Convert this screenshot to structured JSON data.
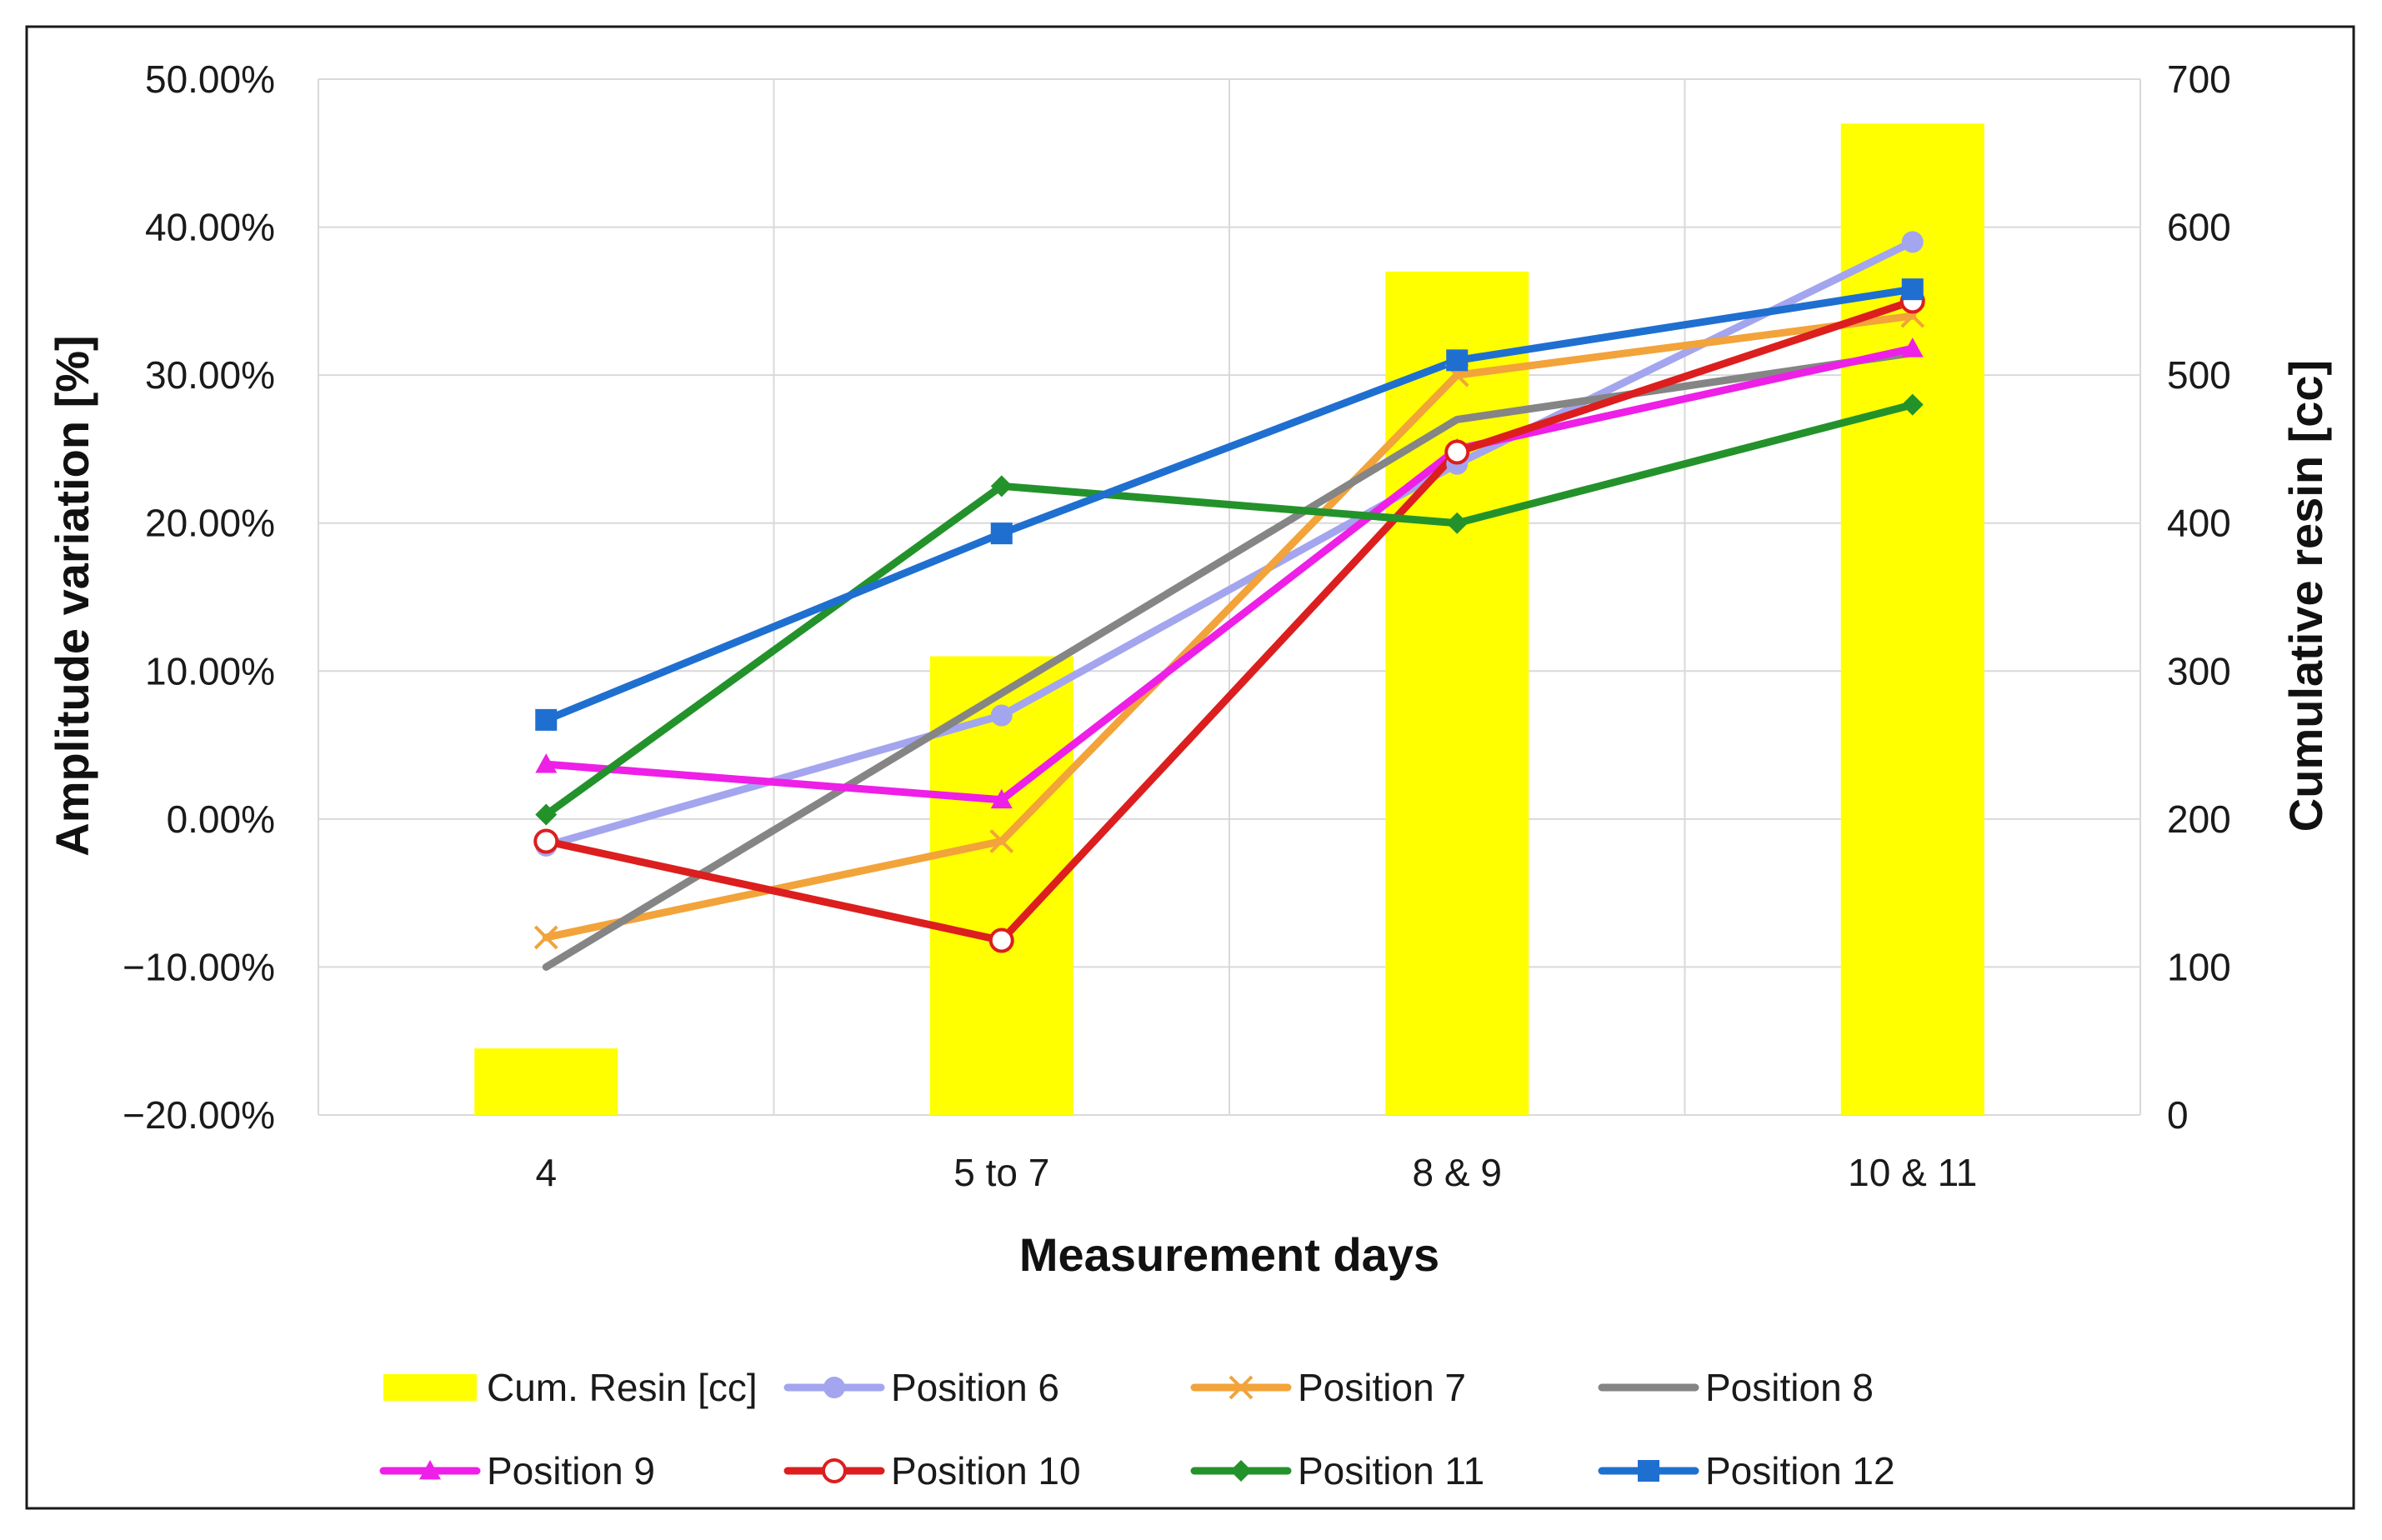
{
  "chart_data": {
    "type": "bar",
    "categories": [
      "4",
      "5 to 7",
      "8 & 9",
      "10 & 11"
    ],
    "xlabel": "Measurement days",
    "ylabel": "Amplitude variation [%]",
    "y2label": "Cumulative resin [cc]",
    "ylim": [
      -20,
      50
    ],
    "y2lim": [
      0,
      700
    ],
    "yticks": [
      "50.00%",
      "40.00%",
      "30.00%",
      "20.00%",
      "10.00%",
      "0.00%",
      "−10.00%",
      "−20.00%"
    ],
    "y2ticks": [
      "700",
      "600",
      "500",
      "400",
      "300",
      "200",
      "100",
      "0"
    ],
    "grid": true,
    "legend_position": "bottom",
    "bars": {
      "name": "Cum. Resin [cc]",
      "axis": "right",
      "color": "#ffff00",
      "values": [
        45,
        310,
        570,
        670
      ]
    },
    "series": [
      {
        "name": "Position 6",
        "type": "line",
        "axis": "left",
        "color": "#a3a5ee",
        "marker": "circle",
        "values": [
          -1.8,
          7.0,
          24.0,
          39.0
        ]
      },
      {
        "name": "Position 7",
        "type": "line",
        "axis": "left",
        "color": "#f2a33a",
        "marker": "x",
        "values": [
          -8.0,
          -1.5,
          30.0,
          34.0
        ]
      },
      {
        "name": "Position 8",
        "type": "line",
        "axis": "left",
        "color": "#858585",
        "marker": "none",
        "values": [
          -10.0,
          8.5,
          27.0,
          31.5
        ]
      },
      {
        "name": "Position 9",
        "type": "line",
        "axis": "left",
        "color": "#ee1fe6",
        "marker": "triangle",
        "values": [
          3.7,
          1.3,
          25.0,
          31.8
        ]
      },
      {
        "name": "Position 10",
        "type": "line",
        "axis": "left",
        "color": "#dc1e1e",
        "marker": "open-circle",
        "values": [
          -1.5,
          -8.2,
          24.8,
          35.0
        ]
      },
      {
        "name": "Position 11",
        "type": "line",
        "axis": "left",
        "color": "#23922b",
        "marker": "diamond",
        "values": [
          0.3,
          22.5,
          20.0,
          28.0
        ]
      },
      {
        "name": "Position 12",
        "type": "line",
        "axis": "left",
        "color": "#1f6fd0",
        "marker": "square",
        "values": [
          6.7,
          19.3,
          31.0,
          35.8
        ]
      }
    ]
  }
}
